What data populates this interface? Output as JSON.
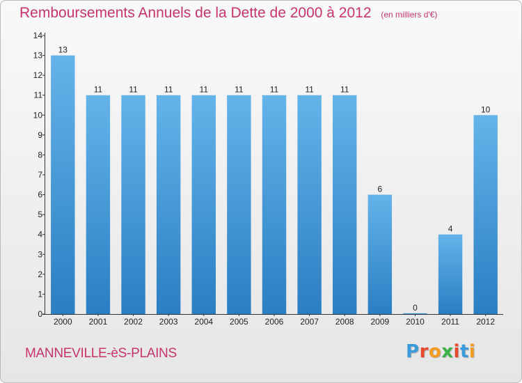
{
  "header": {
    "title": "Remboursements Annuels de la Dette de 2000 à 2012",
    "unit": "(en milliers d'€)"
  },
  "commune": "MANNEVILLE-èS-PLAINS",
  "logo": {
    "text": "Proxiti",
    "letter_colors": [
      "#3b9ad9",
      "#e6492d",
      "#f39a1f",
      "#3bb14a",
      "#e6492d",
      "#3b9ad9",
      "#f39a1f"
    ]
  },
  "colors": {
    "bar_top": "#64b4ea",
    "bar_bottom": "#2a7ec2",
    "axis": "#333333",
    "tick_text": "#222222"
  },
  "chart_data": {
    "type": "bar",
    "categories": [
      "2000",
      "2001",
      "2002",
      "2003",
      "2004",
      "2005",
      "2006",
      "2007",
      "2008",
      "2009",
      "2010",
      "2011",
      "2012"
    ],
    "values": [
      13,
      11,
      11,
      11,
      11,
      11,
      11,
      11,
      11,
      6,
      0,
      4,
      10
    ],
    "data_labels": [
      "13",
      "11",
      "11",
      "11",
      "11",
      "11",
      "11",
      "11",
      "11",
      "6",
      "0",
      "4",
      "10"
    ],
    "ylim": [
      0,
      14
    ],
    "yticks": [
      0,
      1,
      2,
      3,
      4,
      5,
      6,
      7,
      8,
      9,
      10,
      11,
      12,
      13,
      14
    ],
    "grid": false,
    "xlabel": "",
    "ylabel": ""
  }
}
